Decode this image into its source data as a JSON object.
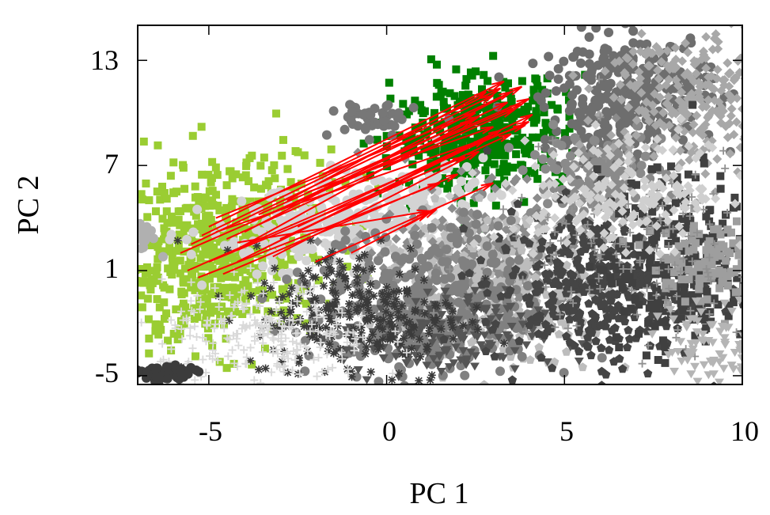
{
  "chart_data": {
    "type": "scatter",
    "title": "",
    "xlabel": "PC 1",
    "ylabel": "PC 2",
    "xlim": [
      -7,
      10
    ],
    "ylim": [
      -5.5,
      15
    ],
    "x_ticks": [
      -5,
      0,
      5,
      10
    ],
    "y_ticks": [
      -5,
      1,
      7,
      13
    ],
    "x_tick_labels": [
      "-5",
      "0",
      "5",
      "10"
    ],
    "y_tick_labels": [
      "-5",
      "1",
      "7",
      "13"
    ],
    "grid": false,
    "legend": "none",
    "clusters": [
      {
        "marker": "square",
        "color": "#9acd32",
        "cx": -4.6,
        "cy": 2.0,
        "sx": 1.5,
        "sy": 2.5,
        "tilt": 0.35,
        "n": 650
      },
      {
        "marker": "square",
        "color": "#008000",
        "cx": 2.6,
        "cy": 8.8,
        "sx": 1.2,
        "sy": 1.6,
        "tilt": 0.2,
        "n": 420
      },
      {
        "marker": "circle",
        "color": "#d3d3d3",
        "cx": -1.0,
        "cy": 3.8,
        "sx": 2.0,
        "sy": 1.2,
        "tilt": 0.3,
        "n": 300
      },
      {
        "marker": "circle",
        "color": "#777777",
        "cx": -0.4,
        "cy": 9.6,
        "sx": 0.6,
        "sy": 0.5,
        "tilt": 0,
        "n": 50
      },
      {
        "marker": "circle",
        "color": "#6e6e6e",
        "cx": 6.8,
        "cy": 10.8,
        "sx": 1.2,
        "sy": 1.8,
        "tilt": 0.25,
        "n": 350
      },
      {
        "marker": "circle",
        "color": "#8a8a8a",
        "cx": 5.8,
        "cy": 6.5,
        "sx": 1.0,
        "sy": 1.2,
        "tilt": 0,
        "n": 120
      },
      {
        "marker": "diamond",
        "color": "#a8a8a8",
        "cx": 8.5,
        "cy": 11.0,
        "sx": 1.2,
        "sy": 2.2,
        "tilt": 0,
        "n": 240
      },
      {
        "marker": "diamond",
        "color": "#8c8c8c",
        "cx": 3.2,
        "cy": 2.0,
        "sx": 1.7,
        "sy": 1.8,
        "tilt": 0,
        "n": 320
      },
      {
        "marker": "pentagon",
        "color": "#bdbdbd",
        "cx": 3.0,
        "cy": 0.0,
        "sx": 1.6,
        "sy": 2.0,
        "tilt": 0,
        "n": 360
      },
      {
        "marker": "circle",
        "color": "#808080",
        "cx": 1.2,
        "cy": -1.0,
        "sx": 1.6,
        "sy": 2.2,
        "tilt": 0,
        "n": 380
      },
      {
        "marker": "triangle",
        "color": "#555555",
        "cx": 1.5,
        "cy": -2.8,
        "sx": 1.4,
        "sy": 1.3,
        "tilt": 0,
        "n": 160
      },
      {
        "marker": "asterisk",
        "color": "#3a3a3a",
        "cx": -0.8,
        "cy": -1.5,
        "sx": 1.5,
        "sy": 2.0,
        "tilt": 0,
        "n": 260
      },
      {
        "marker": "pentagon",
        "color": "#454545",
        "cx": 5.8,
        "cy": 0.0,
        "sx": 1.5,
        "sy": 2.2,
        "tilt": 0,
        "n": 360
      },
      {
        "marker": "square",
        "color": "#404040",
        "cx": 8.2,
        "cy": 1.5,
        "sx": 1.1,
        "sy": 2.5,
        "tilt": 0,
        "n": 260
      },
      {
        "marker": "square",
        "color": "#9e9e9e",
        "cx": 9.0,
        "cy": 1.6,
        "sx": 0.8,
        "sy": 1.2,
        "tilt": 0,
        "n": 120
      },
      {
        "marker": "plus",
        "color": "#d9d9d9",
        "cx": -3.3,
        "cy": -2.8,
        "sx": 1.5,
        "sy": 1.5,
        "tilt": 0,
        "n": 240
      },
      {
        "marker": "plus",
        "color": "#909090",
        "cx": 6.8,
        "cy": 2.0,
        "sx": 2.0,
        "sy": 3.0,
        "tilt": 0,
        "n": 140
      },
      {
        "marker": "diamond",
        "color": "#cfcfcf",
        "cx": 6.8,
        "cy": 5.5,
        "sx": 1.8,
        "sy": 1.5,
        "tilt": 0,
        "n": 180
      },
      {
        "marker": "circle",
        "color": "#3c3c3c",
        "cx": -6.3,
        "cy": -4.9,
        "sx": 0.45,
        "sy": 0.25,
        "tilt": 0,
        "n": 60
      },
      {
        "marker": "circle",
        "color": "#b0b0b0",
        "cx": -6.8,
        "cy": 3.0,
        "sx": 0.2,
        "sy": 0.4,
        "tilt": 0,
        "n": 20
      },
      {
        "marker": "triangle",
        "color": "#b5b5b5",
        "cx": 9.2,
        "cy": -3.5,
        "sx": 0.7,
        "sy": 1.2,
        "tilt": 0,
        "n": 80
      }
    ],
    "arrows": {
      "color": "#ff0000",
      "vectors": [
        {
          "x1": -5.0,
          "y1": 3.5,
          "x2": 3.3,
          "y2": 11.8
        },
        {
          "x1": -5.5,
          "y1": 2.5,
          "x2": 3.5,
          "y2": 11.2
        },
        {
          "x1": -5.8,
          "y1": 2.0,
          "x2": 3.8,
          "y2": 10.5
        },
        {
          "x1": -5.6,
          "y1": 1.0,
          "x2": 4.0,
          "y2": 9.5
        },
        {
          "x1": -5.2,
          "y1": 3.0,
          "x2": 3.0,
          "y2": 11.0
        },
        {
          "x1": -4.8,
          "y1": 4.0,
          "x2": 2.5,
          "y2": 10.0
        },
        {
          "x1": -4.5,
          "y1": 2.8,
          "x2": 3.6,
          "y2": 10.2
        },
        {
          "x1": -4.2,
          "y1": 1.5,
          "x2": 3.2,
          "y2": 9.0
        },
        {
          "x1": -3.8,
          "y1": 3.8,
          "x2": 4.0,
          "y2": 10.8
        },
        {
          "x1": -3.5,
          "y1": 2.2,
          "x2": 2.8,
          "y2": 8.5
        },
        {
          "x1": -3.0,
          "y1": 2.8,
          "x2": 3.5,
          "y2": 8.8
        },
        {
          "x1": -5.0,
          "y1": 1.5,
          "x2": 2.2,
          "y2": 7.5
        },
        {
          "x1": -4.0,
          "y1": 3.2,
          "x2": 3.8,
          "y2": 11.5
        },
        {
          "x1": -2.5,
          "y1": 3.5,
          "x2": 4.1,
          "y2": 9.9
        },
        {
          "x1": -4.6,
          "y1": 0.8,
          "x2": 2.0,
          "y2": 6.5
        },
        {
          "x1": -2.0,
          "y1": 1.5,
          "x2": 3.0,
          "y2": 6.0
        },
        {
          "x1": -4.4,
          "y1": 2.0,
          "x2": 2.4,
          "y2": 9.6
        },
        {
          "x1": -3.0,
          "y1": 4.5,
          "x2": 3.4,
          "y2": 10.6
        },
        {
          "x1": -2.2,
          "y1": 5.5,
          "x2": 3.0,
          "y2": 9.2
        },
        {
          "x1": -3.2,
          "y1": 1.8,
          "x2": 2.6,
          "y2": 7.8
        },
        {
          "x1": -5.3,
          "y1": 0.6,
          "x2": 1.5,
          "y2": 6.0
        },
        {
          "x1": -1.8,
          "y1": 6.5,
          "x2": 3.2,
          "y2": 11.4
        },
        {
          "x1": -2.8,
          "y1": 5.0,
          "x2": 2.8,
          "y2": 11.2
        },
        {
          "x1": -4.2,
          "y1": 2.6,
          "x2": 1.2,
          "y2": 4.4
        },
        {
          "x1": -1.0,
          "y1": 2.0,
          "x2": 1.2,
          "y2": 4.3
        },
        {
          "x1": 0.5,
          "y1": 3.5,
          "x2": 1.4,
          "y2": 4.5
        },
        {
          "x1": -4.8,
          "y1": 3.2,
          "x2": 3.9,
          "y2": 9.3
        },
        {
          "x1": -3.6,
          "y1": 4.2,
          "x2": 2.6,
          "y2": 9.8
        }
      ]
    }
  }
}
